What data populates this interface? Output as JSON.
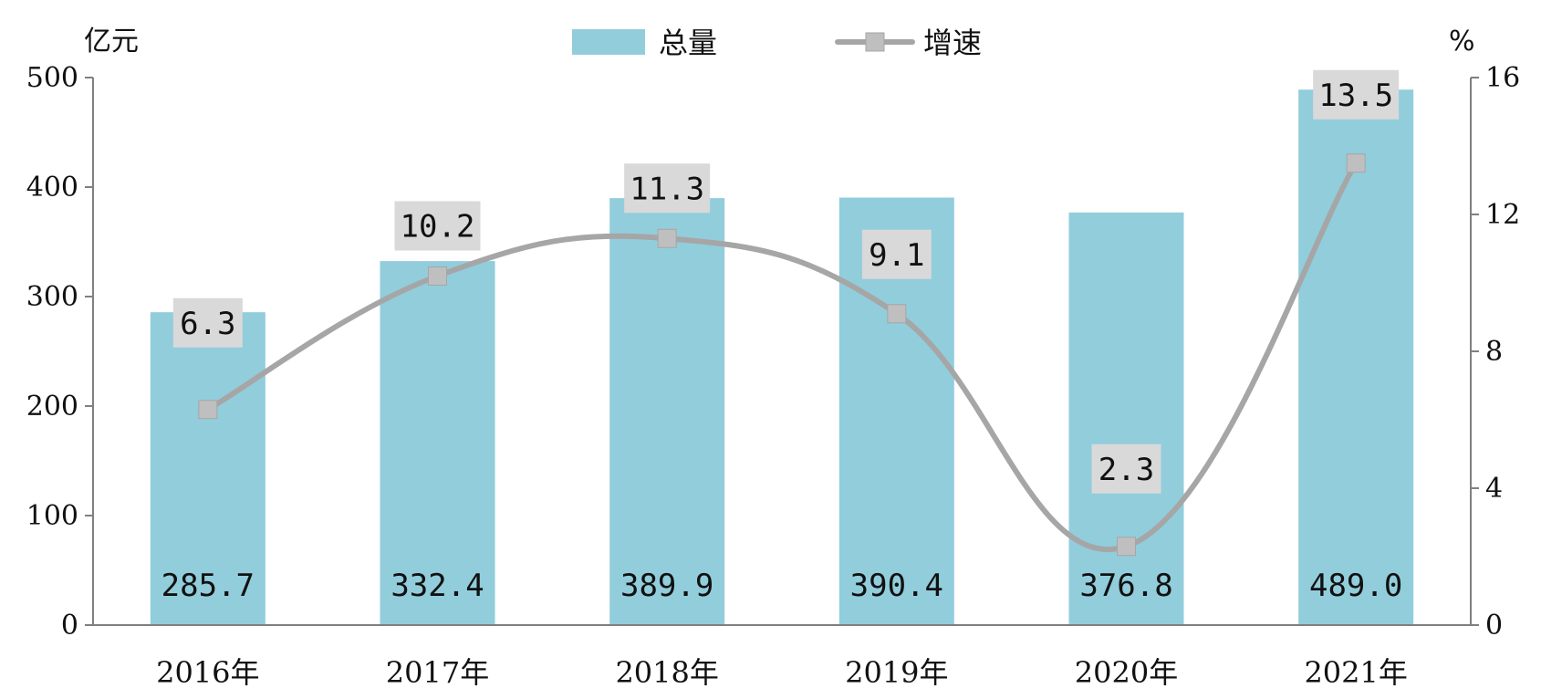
{
  "chart_data": {
    "type": "bar",
    "categories": [
      "2016年",
      "2017年",
      "2018年",
      "2019年",
      "2020年",
      "2021年"
    ],
    "series": [
      {
        "name": "总量",
        "type": "bar",
        "axis": "left",
        "values": [
          285.7,
          332.4,
          389.9,
          390.4,
          376.8,
          489.0
        ],
        "labels": [
          "285.7",
          "332.4",
          "389.9",
          "390.4",
          "376.8",
          "489.0"
        ]
      },
      {
        "name": "增速",
        "type": "line",
        "axis": "right",
        "smooth": true,
        "values": [
          6.3,
          10.2,
          11.3,
          9.1,
          2.3,
          13.5
        ],
        "labels": [
          "6.3",
          "10.2",
          "11.3",
          "9.1",
          "2.3",
          "13.5"
        ]
      }
    ],
    "y_left": {
      "unit": "亿元",
      "ylim": [
        0,
        500
      ],
      "ticks": [
        "0",
        "100",
        "200",
        "300",
        "400",
        "500"
      ]
    },
    "y_right": {
      "unit": "%",
      "ylim": [
        0,
        16
      ],
      "ticks": [
        "0",
        "4",
        "8",
        "12",
        "16"
      ]
    },
    "legend": {
      "position": "top-center",
      "entries": [
        "总量",
        "增速"
      ]
    },
    "grid": false,
    "colors": {
      "bar": "#92cddc",
      "line": "#a6a6a6",
      "marker": "#bfbfbf",
      "label_bg": "#d9d9d9",
      "axis": "#808080"
    }
  }
}
